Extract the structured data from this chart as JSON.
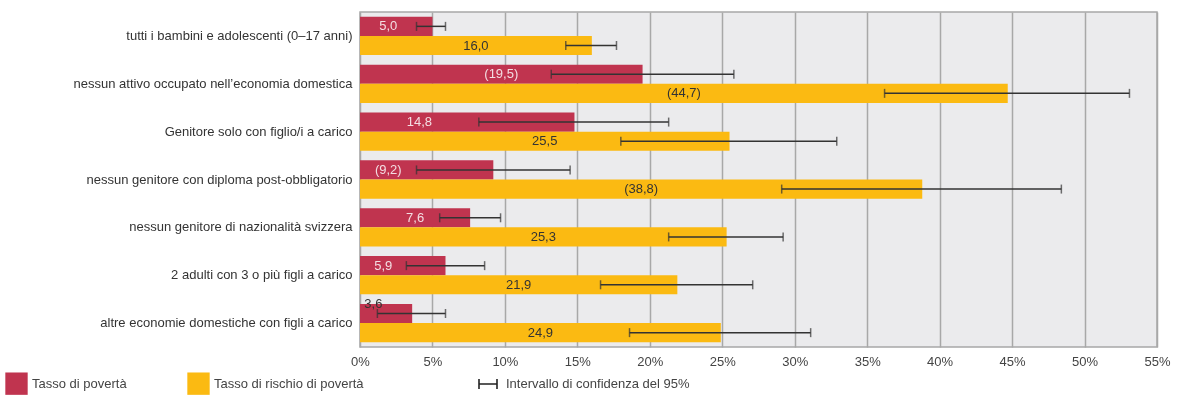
{
  "chart_data": {
    "type": "bar",
    "orientation": "horizontal",
    "categories": [
      "tutti i bambini e adolescenti (0–17 anni)",
      "nessun attivo occupato nell’economia domestica",
      "Genitore solo con figlio/i a carico",
      "nessun genitore con diploma post-obbligatorio",
      "nessun genitore di nazionalità svizzera",
      "2 adulti con 3 o più figli a carico",
      "altre economie domestiche con figli a carico"
    ],
    "series": [
      {
        "name": "Tasso di povertà",
        "color": "#c0344f",
        "values": [
          5.0,
          19.5,
          14.8,
          9.2,
          7.6,
          5.9,
          3.6
        ],
        "value_labels": [
          "5,0",
          "(19,5)",
          "14,8",
          "(9,2)",
          "7,6",
          "5,9",
          "3,6"
        ],
        "errors": [
          [
            3.9,
            5.9
          ],
          [
            13.2,
            25.8
          ],
          [
            8.2,
            21.3
          ],
          [
            3.9,
            14.5
          ],
          [
            5.5,
            9.7
          ],
          [
            3.2,
            8.6
          ],
          [
            1.2,
            5.9
          ]
        ]
      },
      {
        "name": "Tasso di rischio di povertà",
        "color": "#fbba12",
        "values": [
          16.0,
          44.7,
          25.5,
          38.8,
          25.3,
          21.9,
          24.9
        ],
        "value_labels": [
          "16,0",
          "(44,7)",
          "25,5",
          "(38,8)",
          "25,3",
          "21,9",
          "24,9"
        ],
        "errors": [
          [
            14.2,
            17.7
          ],
          [
            36.2,
            53.1
          ],
          [
            18.0,
            32.9
          ],
          [
            29.1,
            48.4
          ],
          [
            21.3,
            29.2
          ],
          [
            16.6,
            27.1
          ],
          [
            18.6,
            31.1
          ]
        ]
      }
    ],
    "xlim": [
      0,
      55
    ],
    "xticks": [
      {
        "value": 0,
        "label": "0%"
      },
      {
        "value": 5,
        "label": "5%"
      },
      {
        "value": 10,
        "label": "10%"
      },
      {
        "value": 15,
        "label": "15%"
      },
      {
        "value": 20,
        "label": "20%"
      },
      {
        "value": 25,
        "label": "25%"
      },
      {
        "value": 30,
        "label": "30%"
      },
      {
        "value": 35,
        "label": "35%"
      },
      {
        "value": 40,
        "label": "40%"
      },
      {
        "value": 45,
        "label": "45%"
      },
      {
        "value": 50,
        "label": "50%"
      },
      {
        "value": 55,
        "label": "55%"
      }
    ],
    "grid": "x",
    "legend": "bottom left",
    "annotations": [
      "Intervallo di confidenza del 95%"
    ]
  }
}
